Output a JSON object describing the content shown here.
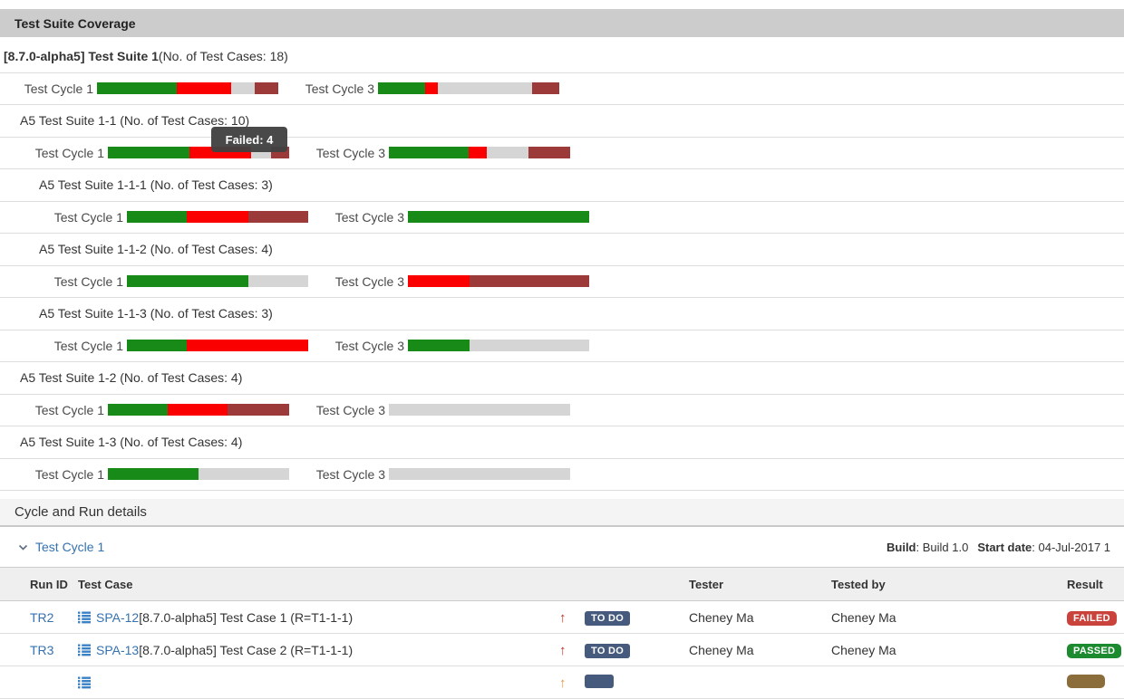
{
  "colors": {
    "passed": "#178a17",
    "failed": "#fa0000",
    "unexecuted": "#d5d5d5",
    "blocked": "#9b3a38",
    "link": "#3572b0",
    "todo_badge": "#455a7d",
    "failed_badge": "#c9433c",
    "passed_badge": "#1c8a2e",
    "blocked_badge": "#8a6d3b",
    "priority_red": "#c32b23",
    "priority_orange": "#e8943a"
  },
  "coverage": {
    "title": "Test Suite Coverage",
    "tooltip": "Failed: 4",
    "rows": [
      {
        "type": "suite",
        "level": 0,
        "bold": "[8.7.0-alpha5] Test Suite 1",
        "rest": " (No. of Test Cases: 18)"
      },
      {
        "type": "bars",
        "level": 0,
        "cycle1": {
          "label": "Test Cycle 1",
          "segments": [
            [
              "passed",
              44
            ],
            [
              "failed",
              30
            ],
            [
              "unexecuted",
              13
            ],
            [
              "blocked",
              13
            ]
          ]
        },
        "cycle3": {
          "label": "Test Cycle 3",
          "segments": [
            [
              "passed",
              26
            ],
            [
              "failed",
              7
            ],
            [
              "unexecuted",
              52
            ],
            [
              "blocked",
              15
            ]
          ]
        }
      },
      {
        "type": "suite",
        "level": 1,
        "bold": "",
        "rest": "A5 Test Suite 1-1 (No. of Test Cases: 10)"
      },
      {
        "type": "bars",
        "level": 1,
        "cycle1": {
          "label": "Test Cycle 1",
          "segments": [
            [
              "passed",
              45
            ],
            [
              "failed",
              34
            ],
            [
              "unexecuted",
              11
            ],
            [
              "blocked",
              10
            ]
          ]
        },
        "cycle3": {
          "label": "Test Cycle 3",
          "segments": [
            [
              "passed",
              44
            ],
            [
              "failed",
              10
            ],
            [
              "unexecuted",
              23
            ],
            [
              "blocked",
              23
            ]
          ]
        }
      },
      {
        "type": "suite",
        "level": 2,
        "bold": "",
        "rest": "A5 Test Suite 1-1-1 (No. of Test Cases: 3)"
      },
      {
        "type": "bars",
        "level": 2,
        "cycle1": {
          "label": "Test Cycle 1",
          "segments": [
            [
              "passed",
              33
            ],
            [
              "failed",
              34
            ],
            [
              "blocked",
              33
            ]
          ]
        },
        "cycle3": {
          "label": "Test Cycle 3",
          "segments": [
            [
              "passed",
              100
            ]
          ]
        }
      },
      {
        "type": "suite",
        "level": 2,
        "bold": "",
        "rest": "A5 Test Suite 1-1-2 (No. of Test Cases: 4)"
      },
      {
        "type": "bars",
        "level": 2,
        "cycle1": {
          "label": "Test Cycle 1",
          "segments": [
            [
              "passed",
              67
            ],
            [
              "unexecuted",
              33
            ]
          ]
        },
        "cycle3": {
          "label": "Test Cycle 3",
          "segments": [
            [
              "failed",
              34
            ],
            [
              "blocked",
              66
            ]
          ]
        }
      },
      {
        "type": "suite",
        "level": 2,
        "bold": "",
        "rest": "A5 Test Suite 1-1-3 (No. of Test Cases: 3)"
      },
      {
        "type": "bars",
        "level": 2,
        "cycle1": {
          "label": "Test Cycle 1",
          "segments": [
            [
              "passed",
              33
            ],
            [
              "failed",
              67
            ]
          ]
        },
        "cycle3": {
          "label": "Test Cycle 3",
          "segments": [
            [
              "passed",
              34
            ],
            [
              "unexecuted",
              66
            ]
          ]
        }
      },
      {
        "type": "suite",
        "level": 1,
        "bold": "",
        "rest": "A5 Test Suite 1-2 (No. of Test Cases: 4)"
      },
      {
        "type": "bars",
        "level": 1,
        "cycle1": {
          "label": "Test Cycle 1",
          "segments": [
            [
              "passed",
              33
            ],
            [
              "failed",
              33
            ],
            [
              "blocked",
              34
            ]
          ]
        },
        "cycle3": {
          "label": "Test Cycle 3",
          "segments": [
            [
              "unexecuted",
              100
            ]
          ]
        }
      },
      {
        "type": "suite",
        "level": 1,
        "bold": "",
        "rest": "A5 Test Suite 1-3 (No. of Test Cases: 4)"
      },
      {
        "type": "bars",
        "level": 1,
        "cycle1": {
          "label": "Test Cycle 1",
          "segments": [
            [
              "passed",
              50
            ],
            [
              "unexecuted",
              50
            ]
          ]
        },
        "cycle3": {
          "label": "Test Cycle 3",
          "segments": [
            [
              "unexecuted",
              100
            ]
          ]
        }
      }
    ]
  },
  "details": {
    "title": "Cycle and Run details",
    "cycle": {
      "label": "Test Cycle 1",
      "build_label": "Build",
      "build_value": ": Build 1.0",
      "start_label": "Start date",
      "start_value": ": 04-Jul-2017 1"
    },
    "table": {
      "headers": {
        "run": "Run ID",
        "case": "Test Case",
        "tester": "Tester",
        "tested_by": "Tested by",
        "result": "Result"
      },
      "rows": [
        {
          "run_id": "TR2",
          "case_link": "SPA-12",
          "case_text": " [8.7.0-alpha5] Test Case 1 (R=T1-1-1)",
          "priority": "red",
          "status": "TO DO",
          "tester": "Cheney Ma",
          "tested_by": "Cheney Ma",
          "result": "FAILED",
          "result_color": "failed_badge",
          "partial": false
        },
        {
          "run_id": "TR3",
          "case_link": "SPA-13",
          "case_text": " [8.7.0-alpha5] Test Case 2 (R=T1-1-1)",
          "priority": "red",
          "status": "TO DO",
          "tester": "Cheney Ma",
          "tested_by": "Cheney Ma",
          "result": "PASSED",
          "result_color": "passed_badge",
          "partial": false
        },
        {
          "run_id": "",
          "case_link": "",
          "case_text": "",
          "priority": "orange",
          "status": "",
          "tester": "",
          "tested_by": "",
          "result": "",
          "result_color": "blocked_badge",
          "partial": true
        }
      ]
    }
  }
}
